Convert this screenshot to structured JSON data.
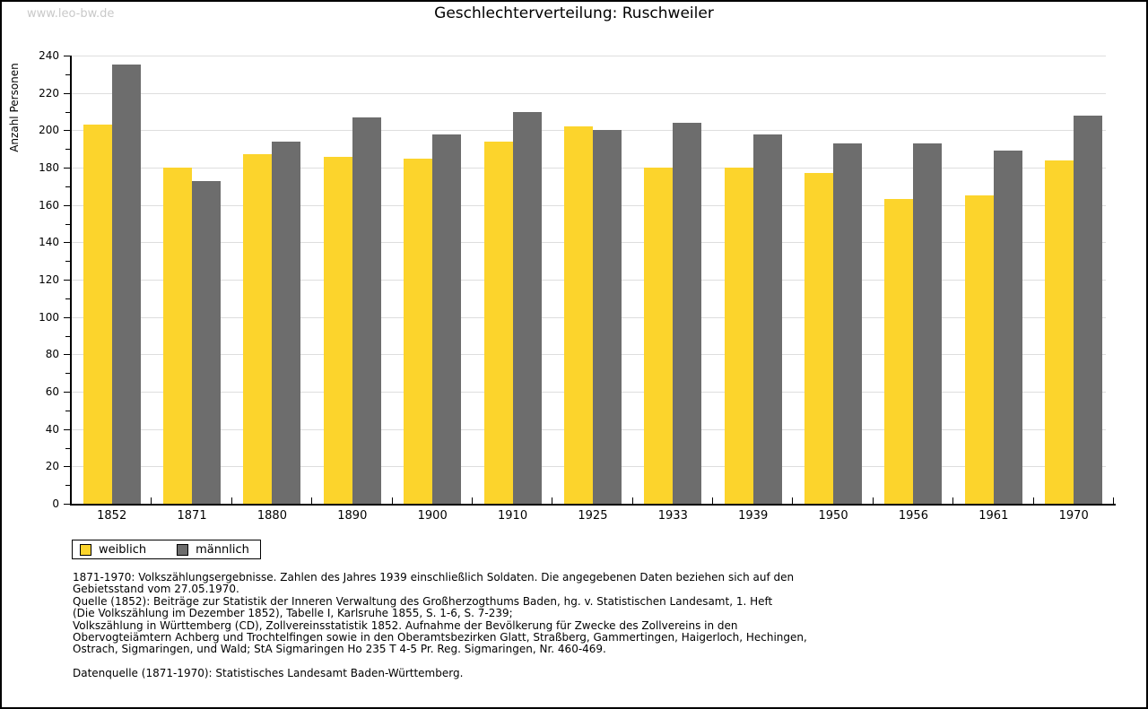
{
  "watermark": "www.leo-bw.de",
  "header": {
    "title": "Geschlechterverteilung: Ruschweiler"
  },
  "chart_data": {
    "type": "bar",
    "title": "Geschlechterverteilung: Ruschweiler",
    "xlabel": "",
    "ylabel": "Anzahl Personen",
    "ylim": [
      0,
      240
    ],
    "y_major_step": 20,
    "y_minor_step": 10,
    "grid": true,
    "legend_position": "bottom-left",
    "categories": [
      "1852",
      "1871",
      "1880",
      "1890",
      "1900",
      "1910",
      "1925",
      "1933",
      "1939",
      "1950",
      "1956",
      "1961",
      "1970"
    ],
    "series": [
      {
        "name": "weiblich",
        "color": "#FCD42C",
        "values": [
          203,
          180,
          187,
          186,
          185,
          194,
          202,
          180,
          180,
          177,
          163,
          165,
          184
        ]
      },
      {
        "name": "männlich",
        "color": "#6D6D6D",
        "values": [
          235,
          173,
          194,
          207,
          198,
          210,
          200,
          204,
          198,
          193,
          193,
          189,
          208
        ]
      }
    ]
  },
  "legend": {
    "items": [
      {
        "label": "weiblich",
        "color": "#FCD42C"
      },
      {
        "label": "männlich",
        "color": "#6D6D6D"
      }
    ]
  },
  "notes": {
    "lines": [
      "1871-1970: Volkszählungsergebnisse. Zahlen des Jahres 1939 einschließlich Soldaten. Die angegebenen Daten beziehen sich auf den",
      "Gebietsstand vom 27.05.1970.",
      "Quelle (1852): Beiträge zur Statistik der Inneren Verwaltung des Großherzogthums Baden, hg. v. Statistischen Landesamt, 1. Heft",
      "(Die Volkszählung im Dezember 1852), Tabelle I, Karlsruhe 1855, S. 1-6, S. 7-239;",
      "Volkszählung in Württemberg (CD), Zollvereinsstatistik 1852. Aufnahme der Bevölkerung für Zwecke des Zollvereins in den",
      "Obervogteiämtern Achberg und Trochtelfingen sowie in den Oberamtsbezirken Glatt, Straßberg, Gammertingen, Haigerloch, Hechingen,",
      "Ostrach, Sigmaringen, und Wald; StA Sigmaringen Ho 235 T 4-5 Pr. Reg. Sigmaringen, Nr. 460-469."
    ],
    "datasource": "Datenquelle (1871-1970): Statistisches Landesamt Baden-Württemberg."
  },
  "colors": {
    "grid": "#DEDEDE",
    "axis": "#000000",
    "watermark": "#C9C9C9",
    "background": "#FFFFFF"
  }
}
